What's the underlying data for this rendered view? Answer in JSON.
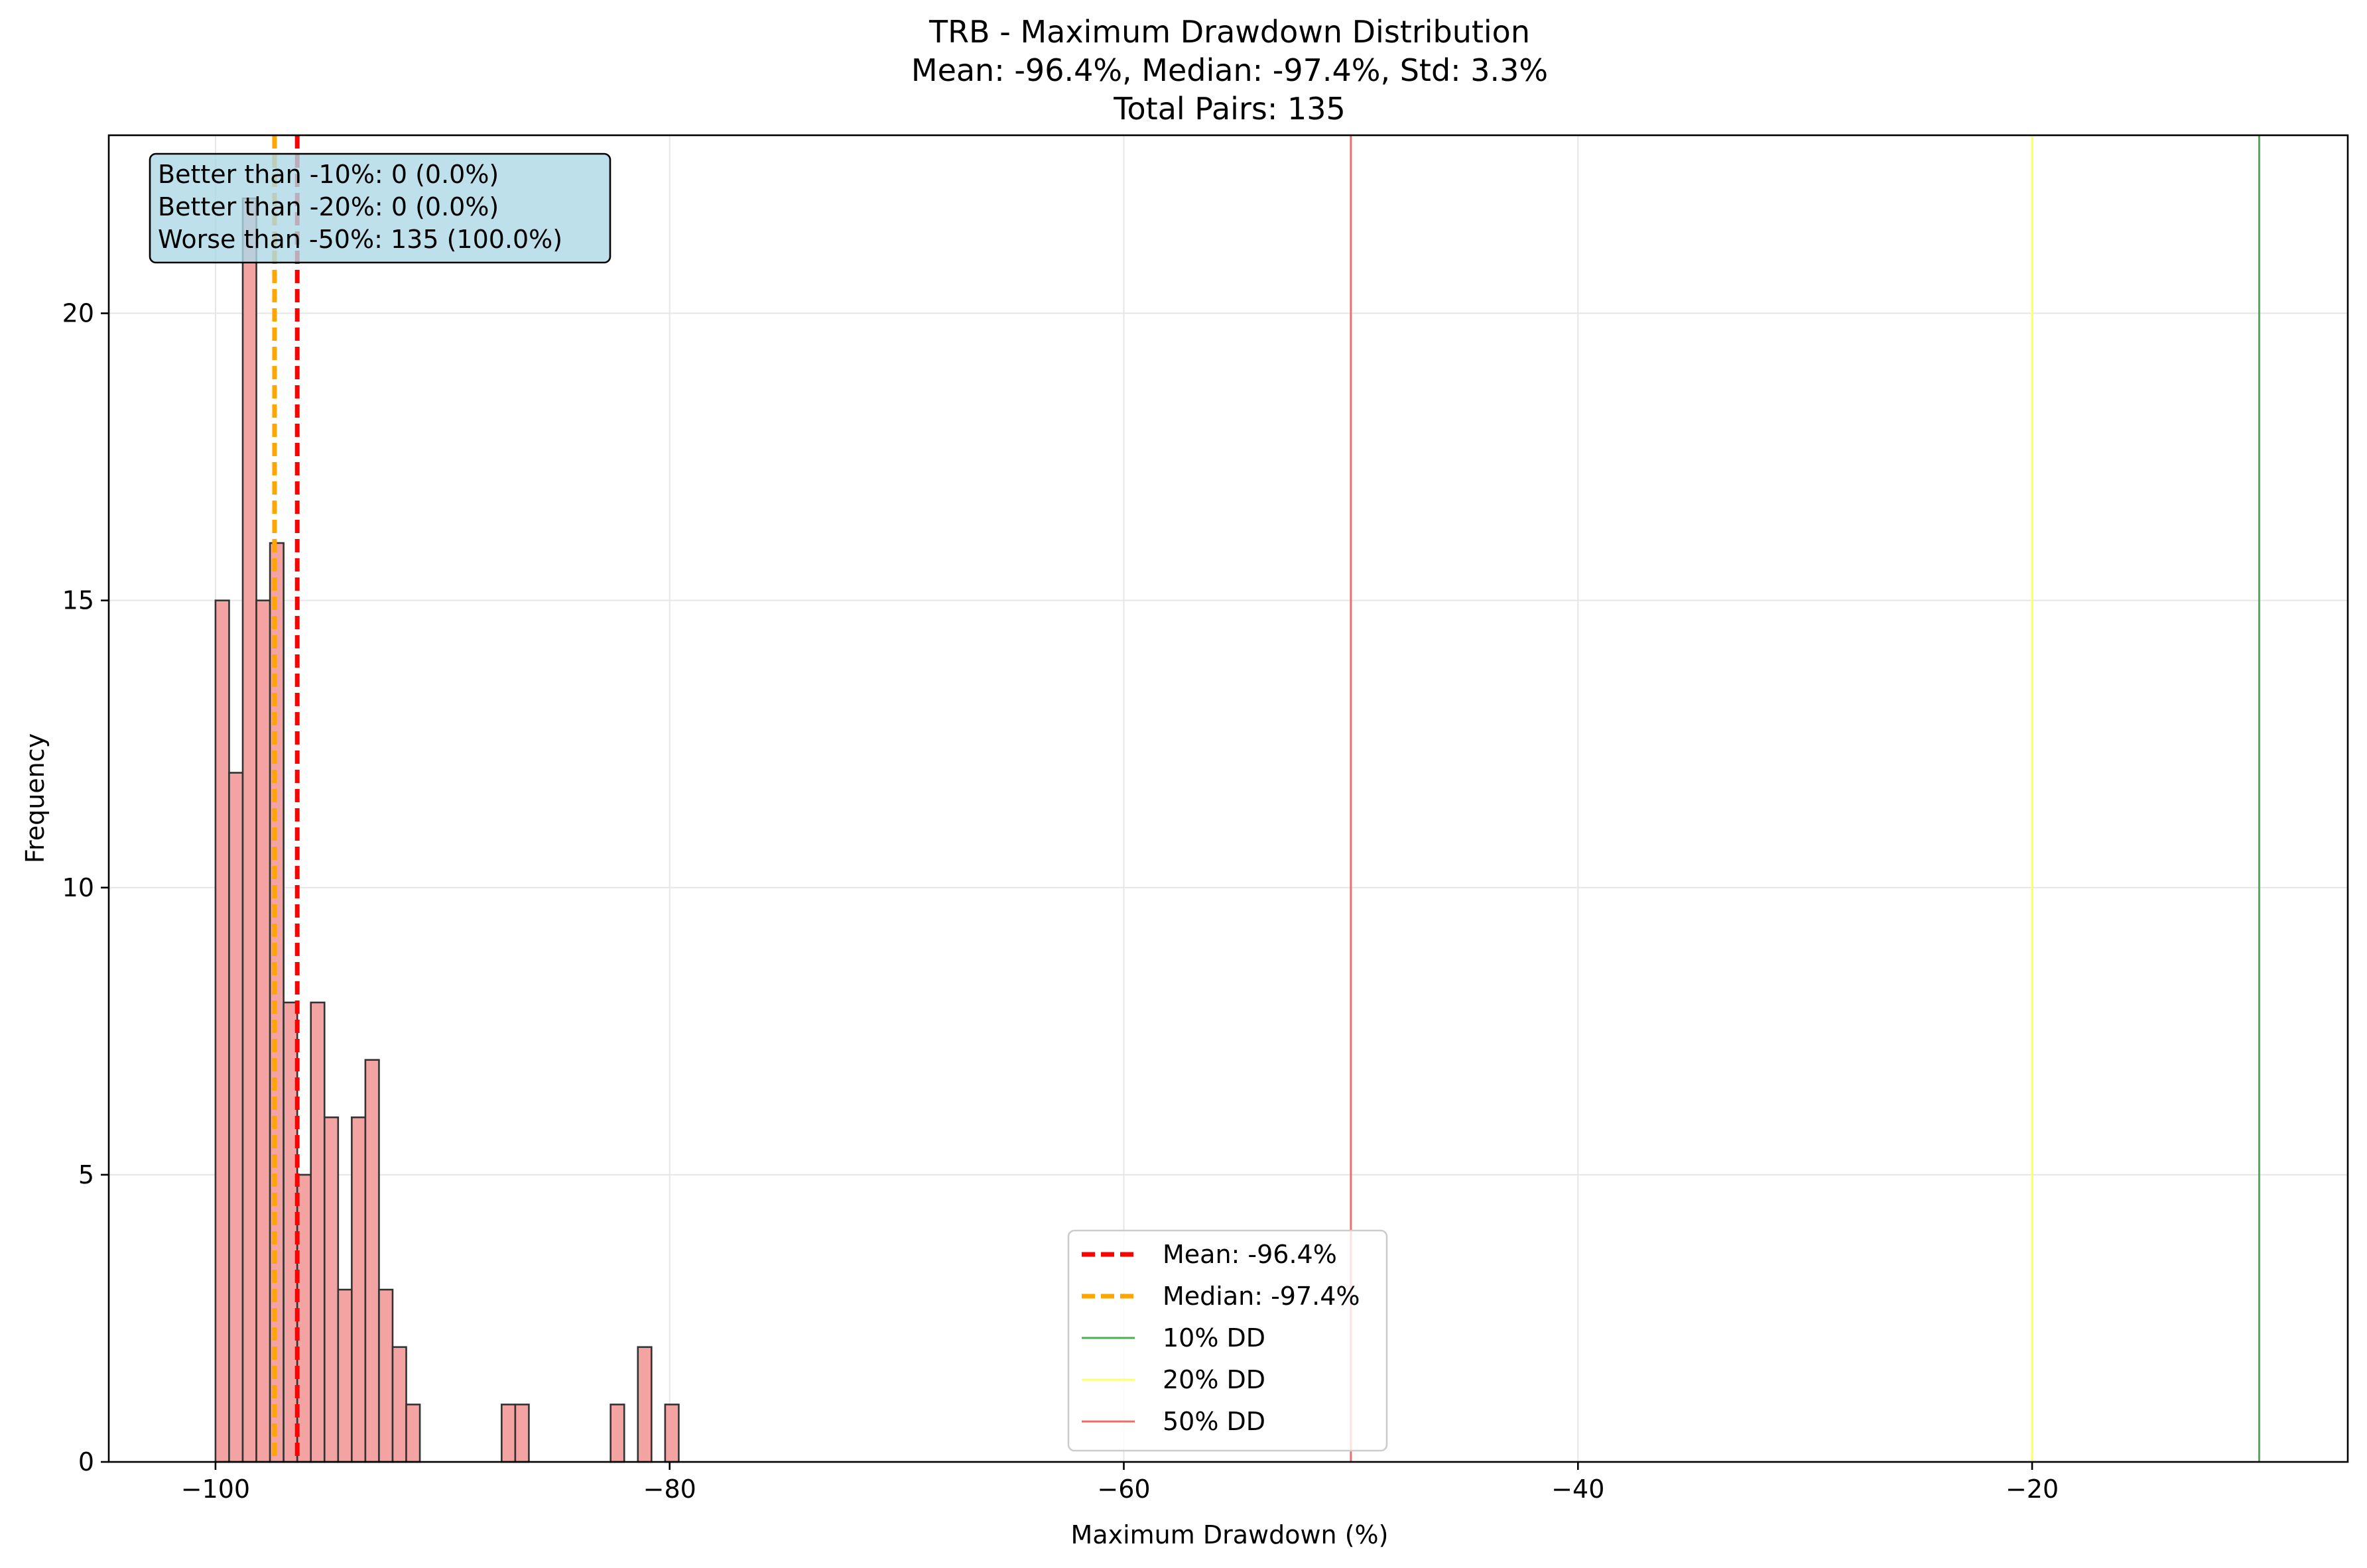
{
  "chart_data": {
    "type": "bar",
    "title_lines": [
      "TRB - Maximum Drawdown Distribution",
      "Mean: -96.4%, Median: -97.4%, Std: 3.3%",
      "Total Pairs: 135"
    ],
    "xlabel": "Maximum Drawdown (%)",
    "ylabel": "Frequency",
    "xlim": [
      -104.7,
      -6.1
    ],
    "ylim": [
      0,
      23.1
    ],
    "xticks": [
      -100,
      -80,
      -60,
      -40,
      -20
    ],
    "xtick_labels": [
      "−100",
      "−80",
      "−60",
      "−40",
      "−20"
    ],
    "yticks": [
      0,
      5,
      10,
      15,
      20
    ],
    "ytick_labels": [
      "0",
      "5",
      "10",
      "15",
      "20"
    ],
    "grid": true,
    "bar_color": "#f4a3a3",
    "bar_edge_color": "#333333",
    "bin_start": -100.0,
    "bin_width": 0.6,
    "bin_counts": [
      15,
      12,
      22,
      15,
      16,
      8,
      5,
      8,
      6,
      3,
      6,
      7,
      3,
      2,
      1,
      0,
      0,
      0,
      0,
      0,
      0,
      1,
      1,
      0,
      0,
      0,
      0,
      0,
      0,
      1,
      0,
      2,
      0,
      1
    ],
    "reference_lines": [
      {
        "name": "Mean: -96.4%",
        "x": -96.4,
        "color": "#ff0000",
        "style": "dashed"
      },
      {
        "name": "Median: -97.4%",
        "x": -97.4,
        "color": "#ffa500",
        "style": "dashed"
      },
      {
        "name": "10% DD",
        "x": -10,
        "color": "#4caf50",
        "style": "solid"
      },
      {
        "name": "20% DD",
        "x": -20,
        "color": "#ffff66",
        "style": "solid"
      },
      {
        "name": "50% DD",
        "x": -50,
        "color": "#f26b6b",
        "style": "solid"
      }
    ],
    "legend_position": "lower-center",
    "stats_box": {
      "position": "top-left",
      "background": "#add8e6",
      "lines": [
        "Better than -10%: 0 (0.0%)",
        "Better than -20%: 0 (0.0%)",
        "Worse than -50%: 135 (100.0%)"
      ]
    }
  }
}
